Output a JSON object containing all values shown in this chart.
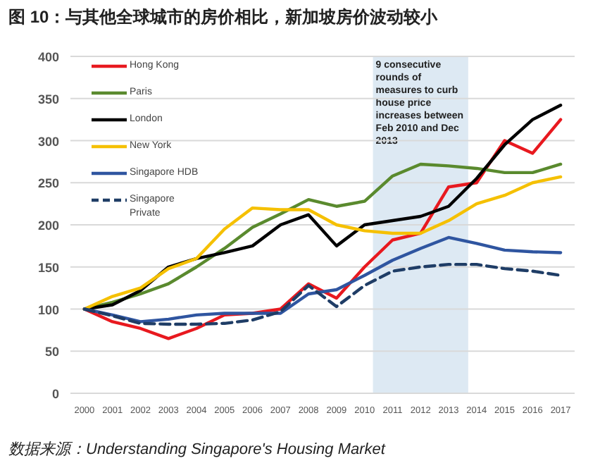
{
  "chart_data": {
    "type": "line",
    "title": "图 10：与其他全球城市的房价相比，新加坡房价波动较小",
    "x": [
      2000,
      2001,
      2002,
      2003,
      2004,
      2005,
      2006,
      2007,
      2008,
      2009,
      2010,
      2011,
      2012,
      2013,
      2014,
      2015,
      2016,
      2017
    ],
    "xlim": [
      1999.5,
      2017.5
    ],
    "xticks": [
      2000,
      2001,
      2002,
      2003,
      2004,
      2005,
      2006,
      2007,
      2008,
      2009,
      2010,
      2011,
      2012,
      2013,
      2014,
      2015,
      2016,
      2017
    ],
    "ylim": [
      0,
      400
    ],
    "yticks": [
      0,
      50,
      100,
      150,
      200,
      250,
      300,
      350,
      400
    ],
    "grid": "y",
    "legend": "top left",
    "series": [
      {
        "name": "Hong Kong",
        "color": "#e8191f",
        "values": [
          100,
          85,
          77,
          65,
          77,
          93,
          95,
          100,
          130,
          113,
          150,
          182,
          190,
          245,
          250,
          300,
          285,
          325
        ]
      },
      {
        "name": "Paris",
        "color": "#5a8a2e",
        "values": [
          100,
          108,
          118,
          130,
          150,
          172,
          197,
          213,
          230,
          222,
          228,
          258,
          272,
          270,
          267,
          262,
          262,
          272
        ]
      },
      {
        "name": "London",
        "color": "#000000",
        "values": [
          100,
          105,
          122,
          150,
          160,
          167,
          175,
          200,
          212,
          175,
          200,
          205,
          210,
          222,
          255,
          295,
          325,
          342
        ]
      },
      {
        "name": "New York",
        "color": "#f5c000",
        "values": [
          100,
          115,
          125,
          148,
          160,
          195,
          220,
          218,
          218,
          200,
          193,
          190,
          190,
          205,
          225,
          235,
          250,
          257
        ]
      },
      {
        "name": "Singapore HDB",
        "color": "#2f55a0",
        "values": [
          100,
          93,
          85,
          88,
          93,
          95,
          95,
          95,
          118,
          123,
          140,
          158,
          172,
          185,
          178,
          170,
          168,
          167
        ]
      },
      {
        "name": "Singapore Private",
        "color": "#1f3d66",
        "line_style": "dashed",
        "values": [
          100,
          92,
          83,
          82,
          82,
          83,
          87,
          97,
          128,
          103,
          128,
          145,
          150,
          153,
          153,
          148,
          145,
          140
        ]
      }
    ],
    "bands": [
      {
        "axis": "x",
        "from": 2010.3,
        "to": 2013.7,
        "color": "#dde9f3",
        "label": "9 consecutive rounds of measures to curb house price increases between Feb 2010 and Dec 2013"
      }
    ],
    "annotations": [
      "数据来源：Understanding Singapore's Housing Market"
    ]
  }
}
